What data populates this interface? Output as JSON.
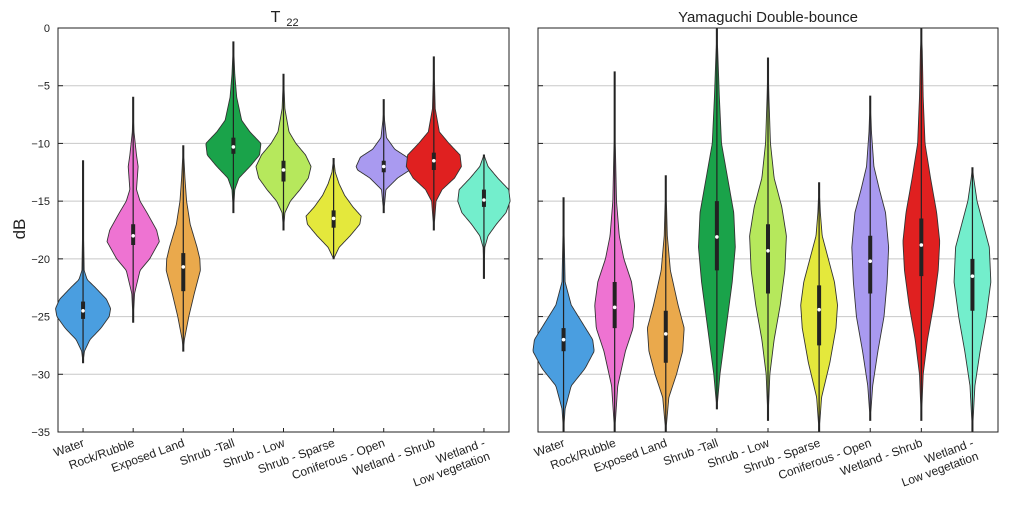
{
  "figure": {
    "ylabel": "dB"
  },
  "chart_data": [
    {
      "type": "violin",
      "title_main": "T",
      "title_sub": "22",
      "ylim": [
        -35,
        0
      ],
      "yticks": [
        0,
        -5,
        -10,
        -15,
        -20,
        -25,
        -30,
        -35
      ],
      "ytick_labels": [
        "0",
        "−5",
        "−10",
        "−15",
        "−20",
        "−25",
        "−30",
        "−35"
      ],
      "grid": true,
      "series": [
        {
          "name": "Water",
          "label_lines": [
            "Water"
          ],
          "color": "#4a9ee0",
          "min": -29,
          "max": -11.5,
          "q1": -25.2,
          "median": -24.5,
          "q3": -23.7,
          "width": 0.55,
          "shape": [
            [
              -29,
              0
            ],
            [
              -28,
              0.05
            ],
            [
              -27,
              0.25
            ],
            [
              -26,
              0.65
            ],
            [
              -25,
              0.95
            ],
            [
              -24.3,
              1.0
            ],
            [
              -23.5,
              0.85
            ],
            [
              -22.5,
              0.45
            ],
            [
              -21.8,
              0.15
            ],
            [
              -21,
              0.04
            ],
            [
              -18,
              0.02
            ],
            [
              -11.5,
              0
            ]
          ]
        },
        {
          "name": "Rock/Rubble",
          "label_lines": [
            "Rock/Rubble"
          ],
          "color": "#ee73d2",
          "min": -25.5,
          "max": -6,
          "q1": -18.8,
          "median": -18.0,
          "q3": -17.0,
          "width": 0.55,
          "shape": [
            [
              -25.5,
              0
            ],
            [
              -23,
              0.05
            ],
            [
              -21,
              0.25
            ],
            [
              -20,
              0.6
            ],
            [
              -18.5,
              0.95
            ],
            [
              -17.5,
              0.85
            ],
            [
              -16,
              0.5
            ],
            [
              -15,
              0.25
            ],
            [
              -14,
              0.12
            ],
            [
              -13,
              0.15
            ],
            [
              -12,
              0.18
            ],
            [
              -11,
              0.12
            ],
            [
              -9,
              0.03
            ],
            [
              -6,
              0
            ]
          ]
        },
        {
          "name": "Exposed Land",
          "label_lines": [
            "Exposed Land"
          ],
          "color": "#eaa94c",
          "min": -28,
          "max": -10.2,
          "q1": -22.8,
          "median": -20.7,
          "q3": -19.5,
          "width": 0.55,
          "shape": [
            [
              -28,
              0
            ],
            [
              -27,
              0.04
            ],
            [
              -25,
              0.2
            ],
            [
              -23,
              0.4
            ],
            [
              -21,
              0.62
            ],
            [
              -20,
              0.6
            ],
            [
              -19,
              0.5
            ],
            [
              -17,
              0.25
            ],
            [
              -15,
              0.12
            ],
            [
              -13,
              0.06
            ],
            [
              -10.2,
              0
            ]
          ]
        },
        {
          "name": "Shrub -Tall",
          "label_lines": [
            "Shrub -Tall"
          ],
          "color": "#1aa34a",
          "min": -16,
          "max": -1.2,
          "q1": -10.9,
          "median": -10.3,
          "q3": -9.5,
          "width": 0.55,
          "shape": [
            [
              -16,
              0
            ],
            [
              -14,
              0.05
            ],
            [
              -13,
              0.2
            ],
            [
              -12,
              0.6
            ],
            [
              -11,
              0.95
            ],
            [
              -10,
              1.0
            ],
            [
              -9,
              0.6
            ],
            [
              -8,
              0.3
            ],
            [
              -6,
              0.12
            ],
            [
              -4,
              0.05
            ],
            [
              -1.2,
              0
            ]
          ]
        },
        {
          "name": "Shrub - Low",
          "label_lines": [
            "Shrub - Low"
          ],
          "color": "#b6e85c",
          "min": -17.5,
          "max": -4,
          "q1": -13.3,
          "median": -12.3,
          "q3": -11.5,
          "width": 0.55,
          "shape": [
            [
              -17.5,
              0
            ],
            [
              -16,
              0.05
            ],
            [
              -15,
              0.25
            ],
            [
              -14,
              0.6
            ],
            [
              -13,
              0.9
            ],
            [
              -12,
              1.0
            ],
            [
              -11,
              0.8
            ],
            [
              -10,
              0.45
            ],
            [
              -9,
              0.2
            ],
            [
              -7,
              0.05
            ],
            [
              -4,
              0
            ]
          ]
        },
        {
          "name": "Shrub - Sparse",
          "label_lines": [
            "Shrub - Sparse"
          ],
          "color": "#e4e83c",
          "min": -20,
          "max": -11.3,
          "q1": -17.3,
          "median": -16.5,
          "q3": -15.8,
          "width": 0.55,
          "shape": [
            [
              -20,
              0
            ],
            [
              -19,
              0.2
            ],
            [
              -18,
              0.6
            ],
            [
              -17,
              0.95
            ],
            [
              -16.3,
              1.0
            ],
            [
              -15.5,
              0.7
            ],
            [
              -14.5,
              0.4
            ],
            [
              -13.5,
              0.2
            ],
            [
              -12.5,
              0.06
            ],
            [
              -11.3,
              0
            ]
          ]
        },
        {
          "name": "Coniferous - Open",
          "label_lines": [
            "Coniferous - Open"
          ],
          "color": "#a99af0",
          "min": -16,
          "max": -6.2,
          "q1": -12.5,
          "median": -12.0,
          "q3": -11.5,
          "width": 0.55,
          "shape": [
            [
              -16,
              0
            ],
            [
              -14,
              0.08
            ],
            [
              -13,
              0.5
            ],
            [
              -12.3,
              0.95
            ],
            [
              -12,
              1.0
            ],
            [
              -11.2,
              0.85
            ],
            [
              -10.5,
              0.4
            ],
            [
              -9.5,
              0.1
            ],
            [
              -8,
              0.03
            ],
            [
              -6.2,
              0
            ]
          ]
        },
        {
          "name": "Wetland - Shrub",
          "label_lines": [
            "Wetland - Shrub"
          ],
          "color": "#e02020",
          "min": -17.5,
          "max": -2.5,
          "q1": -12.3,
          "median": -11.5,
          "q3": -10.8,
          "width": 0.55,
          "shape": [
            [
              -17.5,
              0
            ],
            [
              -15,
              0.08
            ],
            [
              -14,
              0.3
            ],
            [
              -13,
              0.75
            ],
            [
              -12,
              1.0
            ],
            [
              -11,
              0.95
            ],
            [
              -10,
              0.55
            ],
            [
              -9,
              0.2
            ],
            [
              -7,
              0.05
            ],
            [
              -2.5,
              0
            ]
          ]
        },
        {
          "name": "Wetland - Low vegetation",
          "label_lines": [
            "Wetland -",
            "Low vegetation"
          ],
          "color": "#73eecc",
          "min": -21.7,
          "max": -11,
          "q1": -15.5,
          "median": -14.9,
          "q3": -14.0,
          "width": 0.55,
          "shape": [
            [
              -21.7,
              0
            ],
            [
              -19,
              0.03
            ],
            [
              -18,
              0.15
            ],
            [
              -17,
              0.45
            ],
            [
              -16,
              0.8
            ],
            [
              -15,
              0.95
            ],
            [
              -14,
              0.9
            ],
            [
              -13,
              0.5
            ],
            [
              -12,
              0.15
            ],
            [
              -11,
              0
            ]
          ]
        }
      ]
    },
    {
      "type": "violin",
      "title": "Yamaguchi Double-bounce",
      "ylim": [
        -35,
        0
      ],
      "yticks": [
        0,
        -5,
        -10,
        -15,
        -20,
        -25,
        -30,
        -35
      ],
      "grid": true,
      "series": [
        {
          "name": "Water",
          "label_lines": [
            "Water"
          ],
          "color": "#4a9ee0",
          "min": -35,
          "max": -14.7,
          "q1": -28,
          "median": -27,
          "q3": -26,
          "width": 0.6,
          "shape": [
            [
              -35,
              0
            ],
            [
              -33,
              0.05
            ],
            [
              -31,
              0.25
            ],
            [
              -29.5,
              0.7
            ],
            [
              -28,
              1.0
            ],
            [
              -27,
              0.95
            ],
            [
              -25.5,
              0.6
            ],
            [
              -24,
              0.25
            ],
            [
              -22,
              0.05
            ],
            [
              -18,
              0.02
            ],
            [
              -14.7,
              0
            ]
          ]
        },
        {
          "name": "Rock/Rubble",
          "label_lines": [
            "Rock/Rubble"
          ],
          "color": "#ee73d2",
          "min": -35,
          "max": -3.8,
          "q1": -26,
          "median": -24.2,
          "q3": -22,
          "width": 0.6,
          "shape": [
            [
              -35,
              0
            ],
            [
              -31,
              0.1
            ],
            [
              -28,
              0.35
            ],
            [
              -26,
              0.6
            ],
            [
              -24,
              0.65
            ],
            [
              -22,
              0.55
            ],
            [
              -20,
              0.3
            ],
            [
              -18,
              0.15
            ],
            [
              -15,
              0.06
            ],
            [
              -10,
              0.02
            ],
            [
              -3.8,
              0
            ]
          ]
        },
        {
          "name": "Exposed Land",
          "label_lines": [
            "Exposed Land"
          ],
          "color": "#eaa94c",
          "min": -35,
          "max": -12.8,
          "q1": -29,
          "median": -26.5,
          "q3": -24.5,
          "width": 0.6,
          "shape": [
            [
              -35,
              0
            ],
            [
              -32,
              0.1
            ],
            [
              -30,
              0.35
            ],
            [
              -28,
              0.55
            ],
            [
              -26,
              0.6
            ],
            [
              -24,
              0.4
            ],
            [
              -21,
              0.15
            ],
            [
              -18,
              0.05
            ],
            [
              -15,
              0.02
            ],
            [
              -12.8,
              0
            ]
          ]
        },
        {
          "name": "Shrub -Tall",
          "label_lines": [
            "Shrub -Tall"
          ],
          "color": "#1aa34a",
          "min": -33,
          "max": 0,
          "q1": -21,
          "median": -18.1,
          "q3": -15,
          "width": 0.6,
          "shape": [
            [
              -33,
              0
            ],
            [
              -30,
              0.1
            ],
            [
              -26,
              0.3
            ],
            [
              -22,
              0.5
            ],
            [
              -19,
              0.6
            ],
            [
              -16,
              0.55
            ],
            [
              -13,
              0.35
            ],
            [
              -10,
              0.15
            ],
            [
              -6,
              0.08
            ],
            [
              -3,
              0.04
            ],
            [
              0,
              0
            ]
          ]
        },
        {
          "name": "Shrub - Low",
          "label_lines": [
            "Shrub - Low"
          ],
          "color": "#b6e85c",
          "min": -34,
          "max": -2.6,
          "q1": -23,
          "median": -19.3,
          "q3": -17,
          "width": 0.6,
          "shape": [
            [
              -34,
              0
            ],
            [
              -30,
              0.06
            ],
            [
              -27,
              0.2
            ],
            [
              -24,
              0.4
            ],
            [
              -21,
              0.55
            ],
            [
              -18,
              0.6
            ],
            [
              -15.5,
              0.45
            ],
            [
              -13,
              0.2
            ],
            [
              -10,
              0.08
            ],
            [
              -6,
              0.03
            ],
            [
              -2.6,
              0
            ]
          ]
        },
        {
          "name": "Shrub - Sparse",
          "label_lines": [
            "Shrub - Sparse"
          ],
          "color": "#e4e83c",
          "min": -35,
          "max": -13.4,
          "q1": -27.5,
          "median": -24.4,
          "q3": -22.3,
          "width": 0.6,
          "shape": [
            [
              -35,
              0
            ],
            [
              -32,
              0.08
            ],
            [
              -29,
              0.35
            ],
            [
              -26,
              0.55
            ],
            [
              -24,
              0.6
            ],
            [
              -22,
              0.5
            ],
            [
              -20,
              0.3
            ],
            [
              -18,
              0.1
            ],
            [
              -16,
              0.04
            ],
            [
              -13.4,
              0
            ]
          ]
        },
        {
          "name": "Coniferous - Open",
          "label_lines": [
            "Coniferous - Open"
          ],
          "color": "#a99af0",
          "min": -34,
          "max": -5.9,
          "q1": -23,
          "median": -20.2,
          "q3": -18,
          "width": 0.6,
          "shape": [
            [
              -34,
              0
            ],
            [
              -31,
              0.08
            ],
            [
              -28,
              0.25
            ],
            [
              -25,
              0.45
            ],
            [
              -22,
              0.55
            ],
            [
              -19,
              0.6
            ],
            [
              -16,
              0.5
            ],
            [
              -14,
              0.3
            ],
            [
              -12,
              0.12
            ],
            [
              -9,
              0.04
            ],
            [
              -5.9,
              0
            ]
          ]
        },
        {
          "name": "Wetland - Shrub",
          "label_lines": [
            "Wetland - Shrub"
          ],
          "color": "#e02020",
          "min": -34,
          "max": 0,
          "q1": -21.5,
          "median": -18.8,
          "q3": -16.5,
          "width": 0.6,
          "shape": [
            [
              -34,
              0
            ],
            [
              -30,
              0.06
            ],
            [
              -27,
              0.2
            ],
            [
              -24,
              0.4
            ],
            [
              -21,
              0.55
            ],
            [
              -18.5,
              0.6
            ],
            [
              -16,
              0.5
            ],
            [
              -13,
              0.3
            ],
            [
              -10,
              0.12
            ],
            [
              -6,
              0.06
            ],
            [
              -2,
              0.03
            ],
            [
              0,
              0
            ]
          ]
        },
        {
          "name": "Wetland - Low vegetation",
          "label_lines": [
            "Wetland -",
            "Low vegetation"
          ],
          "color": "#73eecc",
          "min": -35,
          "max": -12.1,
          "q1": -24.5,
          "median": -21.5,
          "q3": -20,
          "width": 0.6,
          "shape": [
            [
              -35,
              0
            ],
            [
              -31,
              0.08
            ],
            [
              -28,
              0.25
            ],
            [
              -25,
              0.45
            ],
            [
              -22,
              0.6
            ],
            [
              -19,
              0.55
            ],
            [
              -17,
              0.35
            ],
            [
              -15,
              0.15
            ],
            [
              -13,
              0.04
            ],
            [
              -12.1,
              0
            ]
          ]
        }
      ]
    }
  ]
}
